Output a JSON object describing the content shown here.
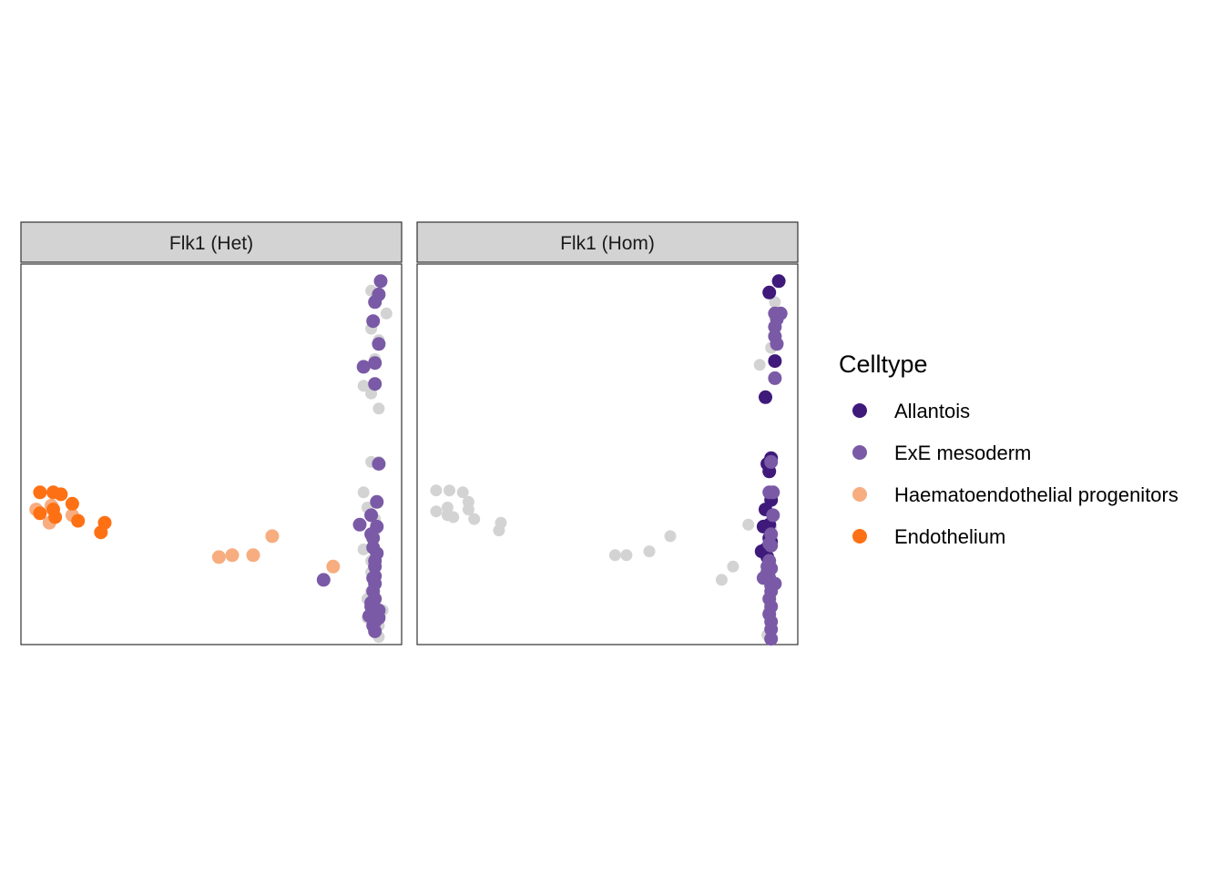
{
  "chart_data": {
    "type": "scatter",
    "x_range": [
      0,
      100
    ],
    "y_range": [
      0,
      100
    ],
    "axes": "hidden",
    "grid": false,
    "legend": {
      "title": "Celltype",
      "placement": "right",
      "items": [
        {
          "label": "Allantois",
          "color": "#3f1a7a"
        },
        {
          "label": "ExE mesoderm",
          "color": "#7a5aa6"
        },
        {
          "label": "Haematoendothelial progenitors",
          "color": "#f7ad7f"
        },
        {
          "label": "Endothelium",
          "color": "#fd7114"
        }
      ]
    },
    "background_color": "#d3d3d3",
    "panels": [
      {
        "label": "Flk1 (Het)",
        "background": [
          [
            92,
            93
          ],
          [
            96,
            87
          ],
          [
            92,
            83
          ],
          [
            94,
            80
          ],
          [
            93,
            75
          ],
          [
            92,
            66
          ],
          [
            94,
            62
          ],
          [
            90,
            68
          ],
          [
            92,
            48
          ],
          [
            94,
            48
          ],
          [
            91,
            36
          ],
          [
            93,
            30
          ],
          [
            90,
            25
          ],
          [
            92,
            19
          ],
          [
            93,
            16
          ],
          [
            91,
            12
          ],
          [
            95,
            9
          ],
          [
            94,
            5
          ],
          [
            91,
            7
          ],
          [
            93,
            4
          ],
          [
            94,
            2
          ],
          [
            92,
            14
          ],
          [
            90,
            40
          ],
          [
            93,
            33
          ],
          [
            92,
            22
          ]
        ],
        "series": [
          {
            "name": "ExE mesoderm",
            "points": [
              [
                94.5,
                95.5
              ],
              [
                93,
                90
              ],
              [
                92.5,
                85
              ],
              [
                94,
                79
              ],
              [
                93,
                74
              ],
              [
                90,
                73
              ],
              [
                93,
                68.5
              ],
              [
                94,
                47.5
              ],
              [
                93.5,
                37.5
              ],
              [
                92,
                34
              ],
              [
                89,
                31.5
              ],
              [
                93.5,
                31
              ],
              [
                92.5,
                25.5
              ],
              [
                93.5,
                24
              ],
              [
                93,
                20.5
              ],
              [
                92.5,
                17.5
              ],
              [
                93,
                16
              ],
              [
                92.5,
                14
              ],
              [
                93,
                12
              ],
              [
                92,
                10
              ],
              [
                93,
                8.5
              ],
              [
                94,
                7
              ],
              [
                92.5,
                5
              ],
              [
                91.5,
                7.5
              ],
              [
                94,
                9
              ],
              [
                93,
                3.5
              ],
              [
                92,
                29
              ],
              [
                93,
                18
              ],
              [
                92,
                11
              ],
              [
                93,
                6
              ],
              [
                93,
                22
              ],
              [
                92.5,
                28
              ],
              [
                94,
                92
              ],
              [
                79.5,
                17
              ]
            ]
          },
          {
            "name": "Haematoendothelial progenitors",
            "points": [
              [
                4,
                35.5
              ],
              [
                7.5,
                32
              ],
              [
                13.5,
                34
              ],
              [
                52,
                23
              ],
              [
                55.5,
                23.5
              ],
              [
                61,
                23.5
              ],
              [
                66,
                28.5
              ],
              [
                82,
                20.5
              ],
              [
                8,
                36.5
              ]
            ]
          },
          {
            "name": "Endothelium",
            "points": [
              [
                5,
                40
              ],
              [
                8.5,
                40
              ],
              [
                10.5,
                39.5
              ],
              [
                13.5,
                37
              ],
              [
                5,
                34.5
              ],
              [
                9,
                33.5
              ],
              [
                15,
                32.5
              ],
              [
                22,
                32
              ],
              [
                21,
                29.5
              ],
              [
                8.5,
                35.5
              ]
            ]
          }
        ]
      },
      {
        "label": "Flk1 (Hom)",
        "background": [
          [
            5,
            40.5
          ],
          [
            8.5,
            40.5
          ],
          [
            12,
            40
          ],
          [
            13.5,
            37.5
          ],
          [
            5,
            35
          ],
          [
            8,
            36
          ],
          [
            13.5,
            35.5
          ],
          [
            15,
            33
          ],
          [
            8,
            34
          ],
          [
            9.5,
            33.5
          ],
          [
            22,
            32
          ],
          [
            21.5,
            30
          ],
          [
            52,
            23.5
          ],
          [
            55,
            23.5
          ],
          [
            61,
            24.5
          ],
          [
            66.5,
            28.5
          ],
          [
            83,
            20.5
          ],
          [
            80,
            17
          ],
          [
            87,
            31.5
          ],
          [
            90,
            73.5
          ],
          [
            94,
            90
          ],
          [
            93,
            78
          ],
          [
            92.5,
            9
          ],
          [
            92,
            2.5
          ],
          [
            93,
            31
          ]
        ],
        "series": [
          {
            "name": "Allantois",
            "points": [
              [
                95,
                95.5
              ],
              [
                92.5,
                92.5
              ],
              [
                94,
                74.5
              ],
              [
                91.5,
                65
              ],
              [
                93,
                49
              ],
              [
                92,
                47.5
              ],
              [
                92.5,
                45.5
              ],
              [
                93,
                38
              ],
              [
                91.5,
                35.5
              ],
              [
                92.5,
                31.5
              ],
              [
                91,
                31
              ],
              [
                92.5,
                28
              ],
              [
                91.5,
                25
              ],
              [
                90.5,
                24.5
              ],
              [
                92,
                23
              ],
              [
                93,
                27
              ]
            ]
          },
          {
            "name": "ExE mesoderm",
            "points": [
              [
                95.5,
                87
              ],
              [
                94.5,
                85.5
              ],
              [
                94,
                83.5
              ],
              [
                94,
                81
              ],
              [
                94.5,
                79
              ],
              [
                94,
                70
              ],
              [
                93,
                48
              ],
              [
                93.5,
                40
              ],
              [
                92.5,
                40
              ],
              [
                93.5,
                34
              ],
              [
                93,
                29
              ],
              [
                93,
                26
              ],
              [
                92.5,
                22
              ],
              [
                92,
                19
              ],
              [
                92.5,
                17.5
              ],
              [
                94,
                16
              ],
              [
                93,
                14
              ],
              [
                92.5,
                12
              ],
              [
                93,
                10
              ],
              [
                92.5,
                8
              ],
              [
                93,
                6
              ],
              [
                93,
                4
              ],
              [
                93,
                1.5
              ],
              [
                91,
                17.5
              ],
              [
                93,
                20
              ],
              [
                92,
                20.5
              ],
              [
                93,
                15.5
              ],
              [
                92.5,
                26.5
              ],
              [
                94,
                87
              ]
            ]
          }
        ]
      }
    ]
  }
}
